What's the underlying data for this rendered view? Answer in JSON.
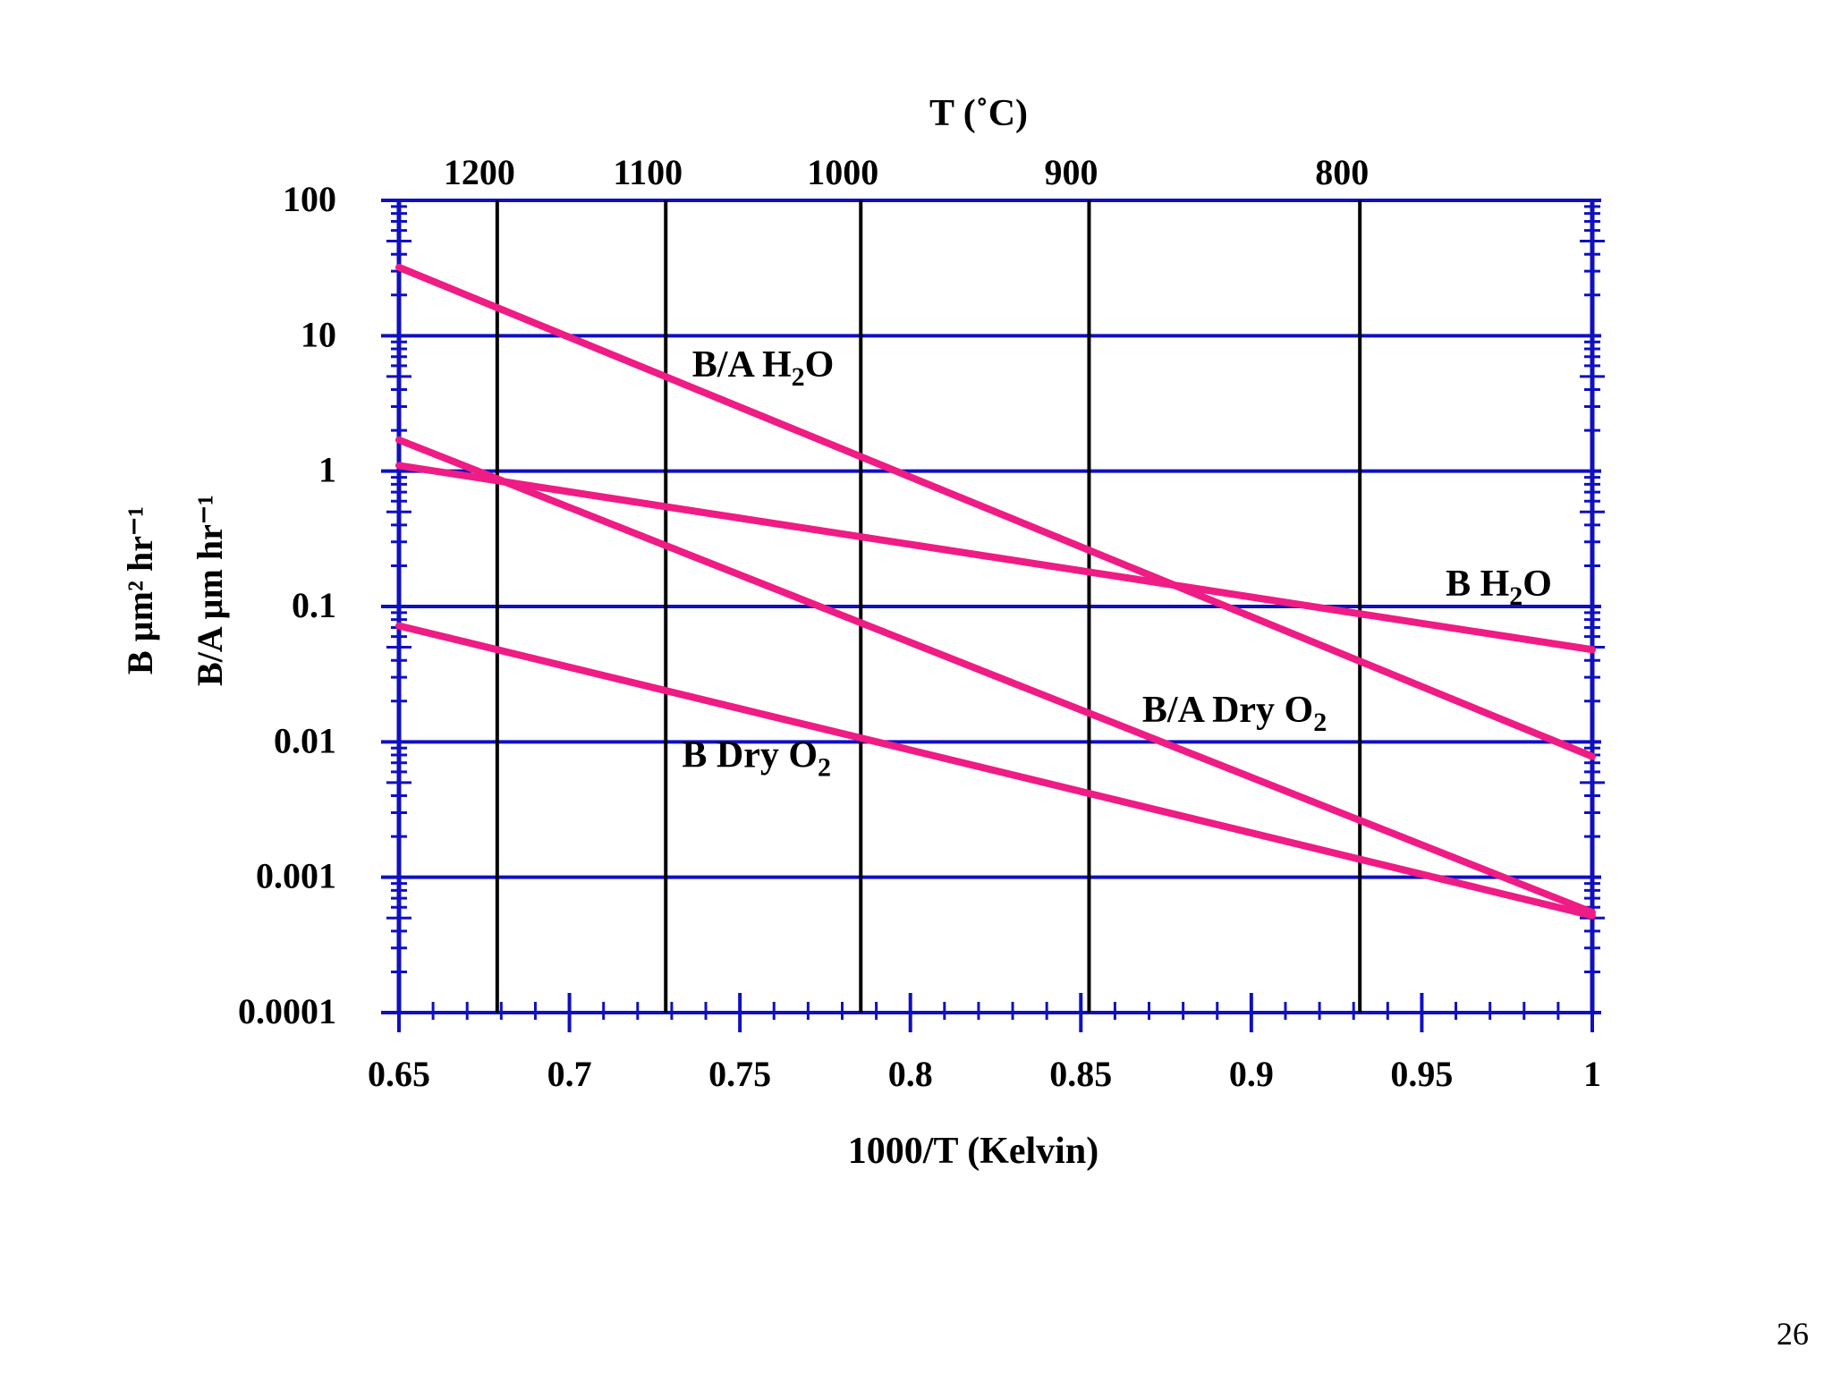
{
  "slide": {
    "page_number": "26"
  },
  "colors": {
    "axis": "#1010c0",
    "temp_line": "#000000",
    "series": "#ee1c84",
    "text": "#000000"
  },
  "chart_data": {
    "type": "line",
    "title": "",
    "xlabel": "1000/T (Kelvin)",
    "top_axis_label": "T (˚C)",
    "ylabel_lines": [
      "B µm² hr⁻¹",
      "B/A µm hr⁻¹"
    ],
    "xlim": [
      0.65,
      1.0
    ],
    "ylim": [
      0.0001,
      100
    ],
    "yscale": "log",
    "x_ticks": [
      0.65,
      0.7,
      0.75,
      0.8,
      0.85,
      0.9,
      0.95,
      1.0
    ],
    "x_tick_labels": [
      "0.65",
      "0.7",
      "0.75",
      "0.8",
      "0.85",
      "0.9",
      "0.95",
      "1"
    ],
    "y_ticks": [
      100,
      10,
      1,
      0.1,
      0.01,
      0.001,
      0.0001
    ],
    "y_tick_labels": [
      "100",
      "10",
      "1",
      "0.1",
      "0.01",
      "0.001",
      "0.0001"
    ],
    "top_ticks": [
      {
        "label": "1200",
        "celsius": 1200
      },
      {
        "label": "1100",
        "celsius": 1100
      },
      {
        "label": "1000",
        "celsius": 1000
      },
      {
        "label": "900",
        "celsius": 900
      },
      {
        "label": "800",
        "celsius": 800
      }
    ],
    "grid": "horizontal at decades; vertical at top-axis temperatures",
    "series": [
      {
        "name": "B/A H2O",
        "label_main": "B/A H",
        "label_sub": "2",
        "label_tail": "O",
        "x": [
          0.65,
          1.0
        ],
        "values": [
          32,
          0.0078
        ],
        "label_at": [
          0.736,
          5
        ]
      },
      {
        "name": "B H2O",
        "label_main": "B H",
        "label_sub": "2",
        "label_tail": "O",
        "x": [
          0.65,
          1.0
        ],
        "values": [
          1.1,
          0.048
        ],
        "label_at": [
          0.957,
          0.12
        ]
      },
      {
        "name": "B/A Dry O2",
        "label_main": "B/A Dry O",
        "label_sub": "2",
        "label_tail": "",
        "x": [
          0.65,
          1.0
        ],
        "values": [
          1.7,
          0.00055
        ],
        "label_at": [
          0.868,
          0.014
        ]
      },
      {
        "name": "B Dry O2",
        "label_main": "B Dry O",
        "label_sub": "2",
        "label_tail": "",
        "x": [
          0.65,
          1.0
        ],
        "values": [
          0.072,
          0.00052
        ],
        "label_at": [
          0.733,
          0.0065
        ]
      }
    ]
  }
}
